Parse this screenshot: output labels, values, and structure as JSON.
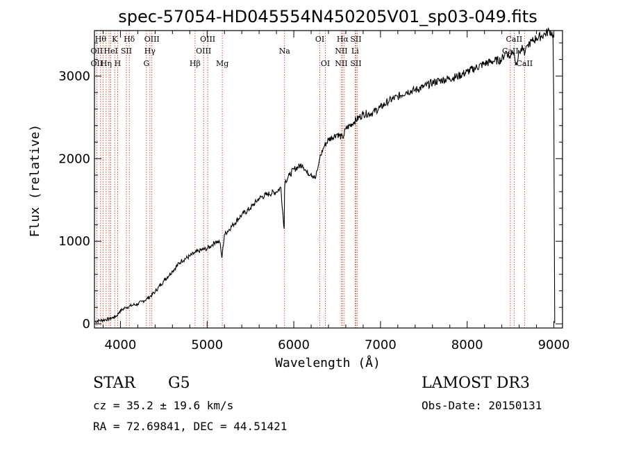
{
  "chart_data": {
    "type": "line",
    "title": "spec-57054-HD045554N450205V01_sp03-049.fits",
    "xlabel": "Wavelength (Å)",
    "ylabel": "Flux (relative)",
    "xlim": [
      3700,
      9100
    ],
    "ylim": [
      -50,
      3550
    ],
    "xticks": [
      {
        "value": 4000,
        "label": "4000"
      },
      {
        "value": 5000,
        "label": "5000"
      },
      {
        "value": 6000,
        "label": "6000"
      },
      {
        "value": 7000,
        "label": "7000"
      },
      {
        "value": 8000,
        "label": "8000"
      },
      {
        "value": 9000,
        "label": "9000"
      }
    ],
    "yticks": [
      {
        "value": 0,
        "label": "0"
      },
      {
        "value": 1000,
        "label": "1000"
      },
      {
        "value": 2000,
        "label": "2000"
      },
      {
        "value": 3000,
        "label": "3000"
      }
    ],
    "series": [
      {
        "name": "spectrum",
        "x": [
          3700,
          3760,
          3820,
          3870,
          3920,
          3960,
          3990,
          4020,
          4060,
          4100,
          4150,
          4200,
          4250,
          4300,
          4340,
          4400,
          4500,
          4600,
          4700,
          4800,
          4861,
          4900,
          4950,
          5000,
          5050,
          5100,
          5150,
          5170,
          5200,
          5300,
          5400,
          5500,
          5600,
          5700,
          5800,
          5850,
          5889,
          5893,
          5896,
          5900,
          5950,
          6000,
          6100,
          6150,
          6200,
          6250,
          6280,
          6300,
          6350,
          6400,
          6500,
          6563,
          6600,
          6700,
          6800,
          6900,
          7000,
          7100,
          7200,
          7300,
          7400,
          7500,
          7600,
          7700,
          7800,
          7900,
          8000,
          8100,
          8200,
          8300,
          8400,
          8450,
          8498,
          8520,
          8542,
          8560,
          8600,
          8640,
          8662,
          8680,
          8700,
          8750,
          8800,
          8850,
          8900,
          8950,
          8990,
          9000,
          9010
        ],
        "y": [
          30,
          40,
          50,
          60,
          80,
          100,
          150,
          170,
          200,
          210,
          230,
          240,
          270,
          300,
          330,
          390,
          520,
          640,
          760,
          820,
          860,
          880,
          900,
          910,
          950,
          1000,
          980,
          800,
          1080,
          1200,
          1320,
          1400,
          1520,
          1570,
          1600,
          1650,
          1150,
          1600,
          1680,
          1720,
          1800,
          1870,
          1930,
          1830,
          1820,
          1760,
          1900,
          2010,
          2150,
          2230,
          2300,
          2250,
          2360,
          2450,
          2540,
          2550,
          2620,
          2700,
          2750,
          2810,
          2830,
          2870,
          2920,
          2950,
          2970,
          3000,
          3050,
          3100,
          3150,
          3180,
          3200,
          3300,
          3220,
          3310,
          3280,
          3130,
          3290,
          3330,
          3250,
          3360,
          3380,
          3420,
          3460,
          3480,
          3510,
          3550,
          3500,
          2600,
          10
        ]
      }
    ],
    "lines": [
      {
        "wl": 3727,
        "labels": [
          "",
          "OII",
          "OII"
        ]
      },
      {
        "wl": 3771,
        "labels": [
          "Hθ",
          "",
          ""
        ]
      },
      {
        "wl": 3799,
        "labels": [
          "",
          "",
          ""
        ]
      },
      {
        "wl": 3835,
        "labels": [
          "",
          "",
          "Hη"
        ]
      },
      {
        "wl": 3869,
        "labels": [
          "",
          "",
          ""
        ]
      },
      {
        "wl": 3889,
        "labels": [
          "",
          "HeI",
          ""
        ]
      },
      {
        "wl": 3934,
        "labels": [
          "K",
          "",
          ""
        ]
      },
      {
        "wl": 3968,
        "labels": [
          "",
          "",
          "H"
        ]
      },
      {
        "wl": 4068,
        "labels": [
          "",
          "SII",
          ""
        ]
      },
      {
        "wl": 4102,
        "labels": [
          "Hδ",
          "",
          ""
        ]
      },
      {
        "wl": 4300,
        "labels": [
          "",
          "",
          "G"
        ]
      },
      {
        "wl": 4340,
        "labels": [
          "",
          "Hγ",
          ""
        ]
      },
      {
        "wl": 4363,
        "labels": [
          "OIII",
          "",
          ""
        ]
      },
      {
        "wl": 4861,
        "labels": [
          "",
          "",
          "Hβ"
        ]
      },
      {
        "wl": 4959,
        "labels": [
          "",
          "OIII",
          ""
        ]
      },
      {
        "wl": 5007,
        "labels": [
          "OIII",
          "",
          ""
        ]
      },
      {
        "wl": 5175,
        "labels": [
          "",
          "",
          "Mg"
        ]
      },
      {
        "wl": 5893,
        "labels": [
          "",
          "Na",
          ""
        ]
      },
      {
        "wl": 6300,
        "labels": [
          "OI",
          "",
          ""
        ]
      },
      {
        "wl": 6364,
        "labels": [
          "",
          "",
          "OI"
        ]
      },
      {
        "wl": 6548,
        "labels": [
          "",
          "NII",
          "NII"
        ]
      },
      {
        "wl": 6563,
        "labels": [
          "Hα",
          "",
          ""
        ]
      },
      {
        "wl": 6583,
        "labels": [
          "",
          "",
          ""
        ]
      },
      {
        "wl": 6707,
        "labels": [
          "",
          "Li",
          ""
        ]
      },
      {
        "wl": 6716,
        "labels": [
          "SII",
          "",
          "SII"
        ]
      },
      {
        "wl": 6731,
        "labels": [
          "",
          "",
          ""
        ]
      },
      {
        "wl": 8498,
        "labels": [
          "",
          "CaII",
          ""
        ]
      },
      {
        "wl": 8542,
        "labels": [
          "CaII",
          "",
          ""
        ]
      },
      {
        "wl": 8662,
        "labels": [
          "",
          "",
          "CaII"
        ]
      }
    ]
  },
  "info": {
    "object_class": "STAR",
    "subclass": "G5",
    "survey": "LAMOST DR3",
    "redshift": "cz =  35.2 ± 19.6 km/s",
    "obs_date": "Obs-Date: 20150131",
    "coordinates": "RA =  72.69841, DEC =  44.51421"
  },
  "colors": {
    "line_marker": "#cc2200",
    "spectrum": "#000000",
    "axis": "#000000"
  }
}
